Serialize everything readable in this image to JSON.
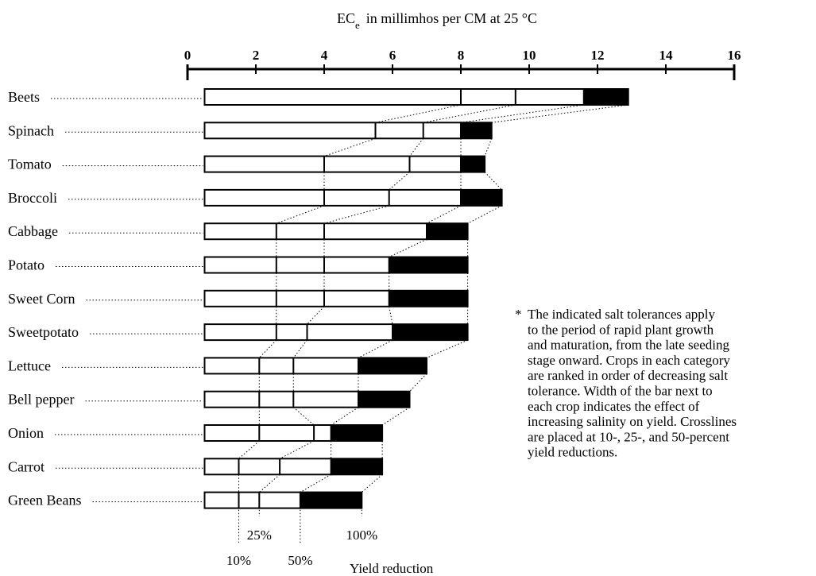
{
  "chart_data": {
    "type": "bar",
    "title_main": "EC",
    "title_sub": "e",
    "title_rest": "in millimhos per CM at 25 °C",
    "xlim": [
      0,
      16
    ],
    "ticks": [
      0,
      2,
      4,
      6,
      8,
      10,
      12,
      14,
      16
    ],
    "tick_labels": [
      "0",
      "2",
      "4",
      "6",
      "8",
      "10",
      "12",
      "14",
      "16"
    ],
    "start_value": 0.5,
    "categories": [
      "Beets",
      "Spinach",
      "Tomato",
      "Broccoli",
      "Cabbage",
      "Potato",
      "Sweet Corn",
      "Sweetpotato",
      "Lettuce",
      "Bell pepper",
      "Onion",
      "Carrot",
      "Green Beans"
    ],
    "yield_10pct": [
      8.0,
      5.5,
      4.0,
      4.0,
      2.6,
      2.6,
      2.6,
      2.6,
      2.1,
      2.1,
      2.1,
      1.5,
      1.5
    ],
    "yield_25pct": [
      9.6,
      6.9,
      6.5,
      5.9,
      4.0,
      4.0,
      4.0,
      3.5,
      3.1,
      3.1,
      3.7,
      2.7,
      2.1
    ],
    "yield_50pct": [
      11.6,
      8.0,
      8.0,
      8.0,
      7.0,
      5.9,
      5.9,
      6.0,
      5.0,
      5.0,
      4.2,
      4.2,
      3.3
    ],
    "yield_100pct": [
      12.9,
      8.9,
      8.7,
      9.2,
      8.2,
      8.2,
      8.2,
      8.2,
      7.0,
      6.5,
      5.7,
      5.7,
      5.1
    ],
    "legend": {
      "p10": "10%",
      "p25": "25%",
      "p50": "50%",
      "p100": "100%",
      "yield_label": "Yield reduction"
    },
    "note_lines": [
      "The indicated salt tolerances apply",
      "to the period of rapid plant growth",
      "and maturation, from the late seeding",
      "stage onward.  Crops in each category",
      "are ranked in order of decreasing salt",
      "tolerance.  Width of the bar next to",
      "each crop indicates the effect of",
      "increasing salinity on yield.  Crosslines",
      "are placed at 10-, 25-, and 50-percent",
      "yield reductions."
    ],
    "note_marker": "*",
    "colors": {
      "ink": "#000000",
      "bar_fill": "#ffffff",
      "loss_fill": "#000000"
    }
  }
}
